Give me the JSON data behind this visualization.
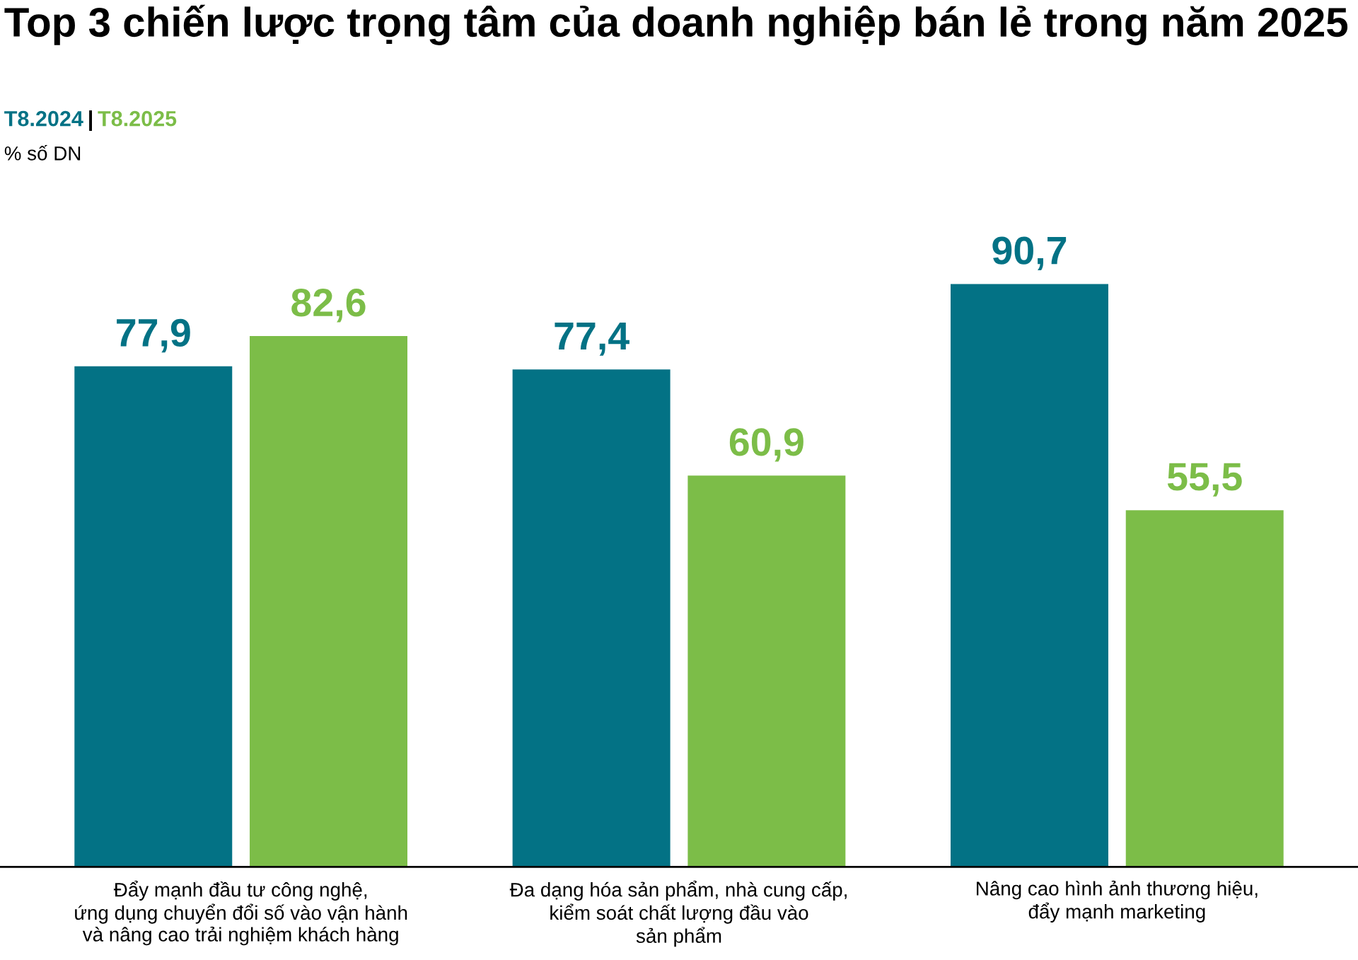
{
  "chart_data": {
    "type": "bar",
    "title": "Top 3 chiến lược trọng tâm của doanh nghiệp bán lẻ trong năm 2025",
    "annotations": [
      "|",
      "% số DN"
    ],
    "categories": [
      "Đẩy mạnh đầu tư công nghệ,\nứng dụng chuyển đổi số vào vận hành\nvà nâng cao trải nghiệm khách hàng",
      "Đa dạng hóa sản phẩm, nhà cung cấp,\nkiểm soát chất lượng đầu vào\nsản phẩm",
      "Nâng cao hình ảnh thương hiệu,\nđẩy mạnh marketing"
    ],
    "series": [
      {
        "name": "T8.2024",
        "color": "#037285",
        "values": [
          77.9,
          77.4,
          90.7
        ],
        "value_labels": [
          "77,9",
          "77,4",
          "90,7"
        ]
      },
      {
        "name": "T8.2025",
        "color": "#7cbd48",
        "values": [
          82.6,
          60.9,
          55.5
        ],
        "value_labels": [
          "82,6",
          "60,9",
          "55,5"
        ]
      }
    ],
    "legend": "top left",
    "grid": false
  }
}
